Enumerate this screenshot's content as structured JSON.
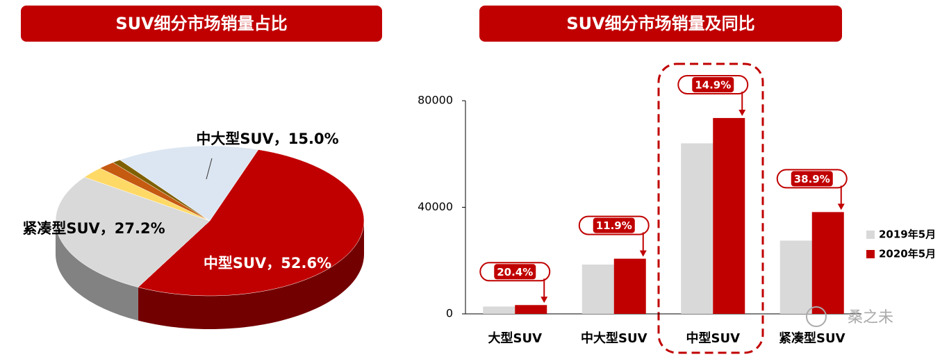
{
  "chart_data": [
    {
      "type": "pie",
      "title": "SUV细分市场销量占比",
      "values": [
        52.6,
        27.2,
        2.5,
        1.8,
        0.9,
        15.0
      ],
      "value_labels": [
        "中型SUV，52.6%",
        "紧凑型SUV，27.2%",
        null,
        null,
        null,
        "中大型SUV，15.0%"
      ],
      "colors": [
        "#c00000",
        "#d9d9d9",
        "#ffd966",
        "#c55a11",
        "#7f6000",
        "#dce6f2"
      ]
    },
    {
      "type": "bar",
      "title": "SUV细分市场销量及同比",
      "categories": [
        "大型SUV",
        "中大型SUV",
        "中型SUV",
        "紧凑型SUV"
      ],
      "series": [
        {
          "name": "2019年5月",
          "color": "#d9d9d9",
          "values": [
            2750,
            18500,
            64000,
            27500
          ]
        },
        {
          "name": "2020年5月",
          "color": "#c00000",
          "values": [
            3310,
            20700,
            73500,
            38200
          ]
        }
      ],
      "growth_labels": [
        "20.4%",
        "11.9%",
        "14.9%",
        "38.9%"
      ],
      "ylim": [
        0,
        80000
      ],
      "yticks": [
        0,
        40000,
        80000
      ],
      "grid": false,
      "legend": "right",
      "watermark": "桑之未"
    }
  ]
}
